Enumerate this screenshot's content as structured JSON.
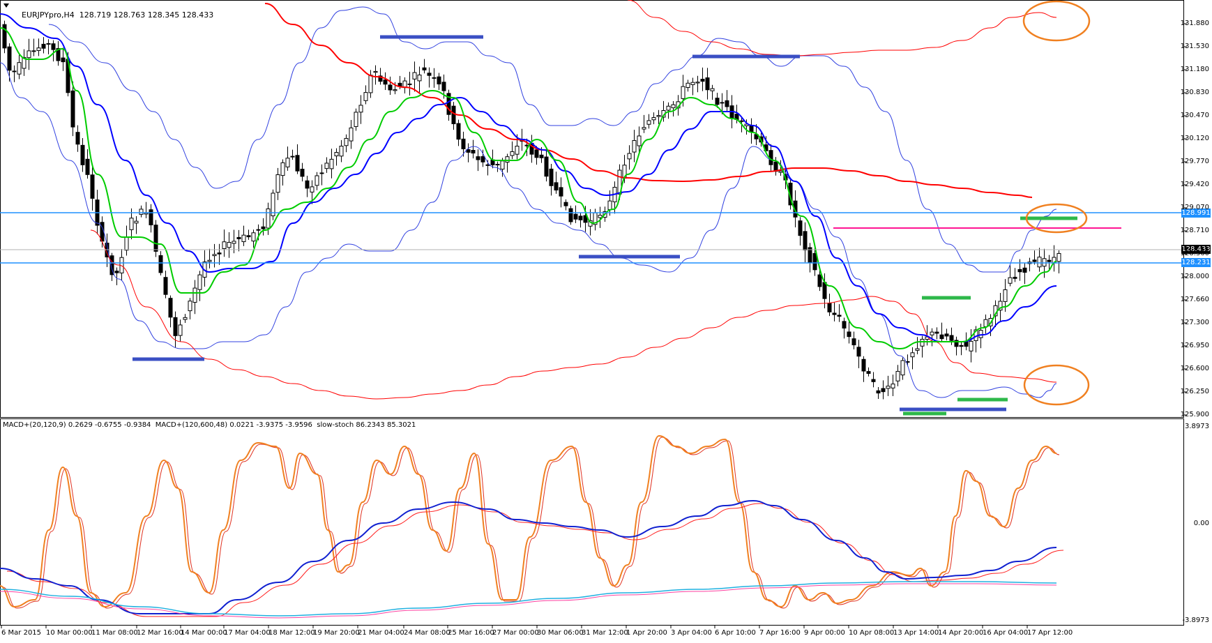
{
  "header": {
    "symbol_label": "EURJPYpro,H4",
    "ohlc": "128.719 128.763 128.345 128.433"
  },
  "subwindow": {
    "label": "MACD+(20,120,9) 0.2629 -0.6755 -0.9384  MACD+(120,600,48) 0.0221 -3.9375 -3.9596  slow-stoch 86.2343 85.3021",
    "axis": [
      "3.8973",
      "0.00",
      "-3.8973"
    ]
  },
  "price_axis": [
    "131.880",
    "131.530",
    "131.180",
    "130.830",
    "130.470",
    "130.120",
    "129.770",
    "129.420",
    "129.070",
    "128.710",
    "128.360",
    "128.000",
    "127.660",
    "127.300",
    "126.950",
    "126.600",
    "126.250",
    "125.900"
  ],
  "tags": {
    "upper_line": "128.991",
    "current": "128.433",
    "lower_line": "128.231"
  },
  "time_axis": [
    "6 Mar 2015",
    "10 Mar 00:00",
    "11 Mar 08:00",
    "12 Mar 16:00",
    "14 Mar 00:00",
    "17 Mar 04:00",
    "18 Mar 12:00",
    "19 Mar 20:00",
    "21 Mar 04:00",
    "24 Mar 08:00",
    "25 Mar 16:00",
    "27 Mar 00:00",
    "30 Mar 06:00",
    "31 Mar 12:00",
    "1 Apr 20:00",
    "3 Apr 04:00",
    "6 Apr 10:00",
    "7 Apr 16:00",
    "9 Apr 00:00",
    "10 Apr 08:00",
    "13 Apr 14:00",
    "14 Apr 20:00",
    "16 Apr 04:00",
    "17 Apr 12:00"
  ],
  "colors": {
    "bull": "#ffffff",
    "bear": "#000000",
    "ema_fast": "#00cc00",
    "ema_mid": "#0000ff",
    "ema_slow": "#ff0000",
    "hline": "#1e90ff",
    "pink": "#ff1493",
    "orange": "#f08020",
    "marker_blue": "#3a4fc4",
    "marker_green": "#2eb84a"
  }
}
